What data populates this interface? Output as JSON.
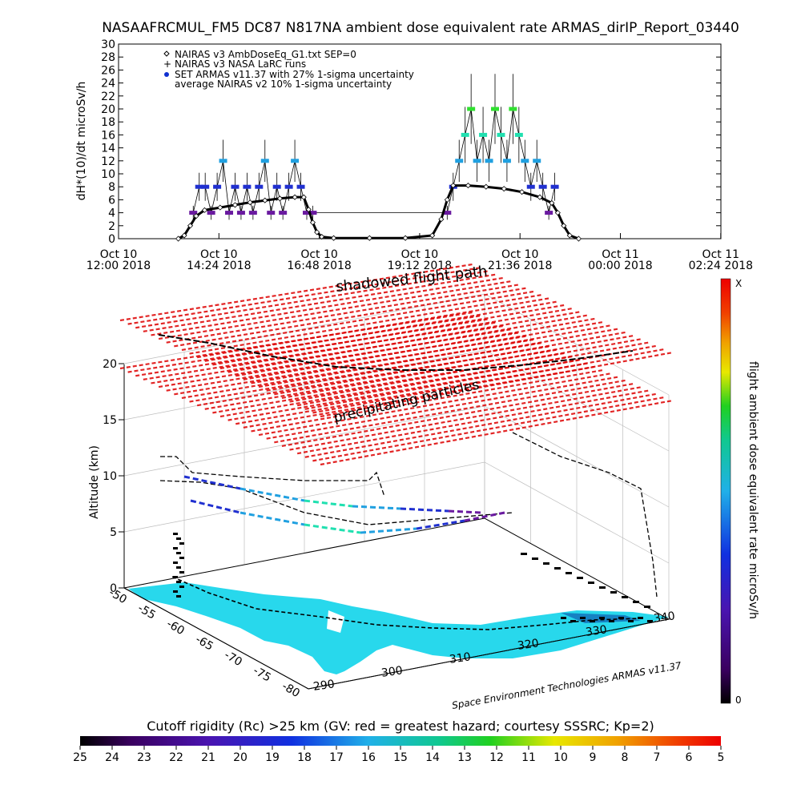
{
  "top_panel": {
    "title": "NASAAFRCMUL_FM5 DC87 N817NA ambient dose equivalent rate ARMAS_dirIP_Report_03440",
    "ylabel": "dH*(10)/dt microSv/h",
    "legend": [
      "NAIRAS v3 AmbDoseEq_G1.txt SEP=0",
      "NAIRAS v3 NASA LaRC runs",
      "SET ARMAS v11.37 with 27% 1-sigma uncertainty",
      "average NAIRAS v2 10% 1-sigma uncertainty"
    ],
    "x_tick_labels": [
      {
        "l1": "Oct 10",
        "l2": "12:00 2018"
      },
      {
        "l1": "Oct 10",
        "l2": "14:24 2018"
      },
      {
        "l1": "Oct 10",
        "l2": "16:48 2018"
      },
      {
        "l1": "Oct 10",
        "l2": "19:12 2018"
      },
      {
        "l1": "Oct 10",
        "l2": "21:36 2018"
      },
      {
        "l1": "Oct 11",
        "l2": "00:00 2018"
      },
      {
        "l1": "Oct 11",
        "l2": "02:24 2018"
      }
    ]
  },
  "bottom_panel": {
    "zlabel": "Altitude (km)",
    "z_ticks": [
      "0",
      "5",
      "10",
      "15",
      "20"
    ],
    "lat_ticks": [
      "-50",
      "-55",
      "-60",
      "-65",
      "-70",
      "-75",
      "-80"
    ],
    "lon_ticks": [
      "290",
      "300",
      "310",
      "320",
      "330",
      "340"
    ],
    "labels": {
      "shadowed": "shadowed flight path",
      "precipitating": "precipitating particles"
    },
    "credit": "Space Environment Technologies ARMAS v11.37",
    "colorbar_label": "flight ambient dose equivalent rate microSv/h",
    "colorbar_top": "X",
    "colorbar_bottom": "0"
  },
  "cutoff_bar": {
    "title": "Cutoff rigidity (Rc) >25 km (GV: red = greatest hazard; courtesy SSSRC; Kp=2)",
    "ticks": [
      "25",
      "24",
      "23",
      "22",
      "21",
      "20",
      "19",
      "18",
      "17",
      "16",
      "15",
      "14",
      "13",
      "12",
      "11",
      "10",
      "9",
      "8",
      "7",
      "6",
      "5"
    ]
  },
  "colors": {
    "armas_palette": [
      "#3a0060",
      "#6a1aa0",
      "#2030d0",
      "#20a0e0",
      "#20e0b0",
      "#30e030"
    ],
    "sheet_red": "#dd0000",
    "land_cyan": "#28d8ec"
  },
  "chart_data": [
    {
      "type": "scatter",
      "title": "NASAAFRCMUL_FM5 DC87 N817NA ambient dose equivalent rate ARMAS_dirIP_Report_03440",
      "xlabel": "",
      "ylabel": "dH*(10)/dt microSv/h",
      "x_unit": "time UTC",
      "xlim": [
        "2018-10-10 12:00",
        "2018-10-11 04:48"
      ],
      "ylim": [
        0,
        30
      ],
      "grid": false,
      "legend_position": "top-left",
      "series": [
        {
          "name": "NAIRAS v3 AmbDoseEq_G1.txt SEP=0",
          "marker": "diamond",
          "points": [
            [
              "2018-10-10 13:40",
              0.0
            ],
            [
              "2018-10-10 13:50",
              0.5
            ],
            [
              "2018-10-10 14:00",
              2.0
            ],
            [
              "2018-10-10 14:10",
              3.5
            ],
            [
              "2018-10-10 14:24",
              4.4
            ],
            [
              "2018-10-10 14:50",
              4.8
            ],
            [
              "2018-10-10 15:15",
              5.2
            ],
            [
              "2018-10-10 15:40",
              5.6
            ],
            [
              "2018-10-10 16:05",
              5.9
            ],
            [
              "2018-10-10 16:30",
              6.2
            ],
            [
              "2018-10-10 16:55",
              6.4
            ],
            [
              "2018-10-10 17:10",
              6.4
            ],
            [
              "2018-10-10 17:18",
              4.5
            ],
            [
              "2018-10-10 17:25",
              2.5
            ],
            [
              "2018-10-10 17:32",
              1.0
            ],
            [
              "2018-10-10 17:40",
              0.3
            ],
            [
              "2018-10-10 18:00",
              0.1
            ],
            [
              "2018-10-10 19:00",
              0.1
            ],
            [
              "2018-10-10 20:00",
              0.1
            ],
            [
              "2018-10-10 20:45",
              0.5
            ],
            [
              "2018-10-10 21:00",
              3.0
            ],
            [
              "2018-10-10 21:10",
              6.0
            ],
            [
              "2018-10-10 21:20",
              8.2
            ],
            [
              "2018-10-10 21:45",
              8.2
            ],
            [
              "2018-10-10 22:15",
              8.0
            ],
            [
              "2018-10-10 22:45",
              7.7
            ],
            [
              "2018-10-10 23:15",
              7.2
            ],
            [
              "2018-10-10 23:45",
              6.4
            ],
            [
              "2018-10-11 00:05",
              5.5
            ],
            [
              "2018-10-11 00:15",
              4.0
            ],
            [
              "2018-10-11 00:25",
              2.0
            ],
            [
              "2018-10-11 00:35",
              0.5
            ],
            [
              "2018-10-11 00:50",
              0.0
            ]
          ]
        },
        {
          "name": "SET ARMAS v11.37 with 27% 1-sigma uncertainty",
          "marker": "dot",
          "points": [
            [
              "2018-10-10 14:05",
              4
            ],
            [
              "2018-10-10 14:15",
              8
            ],
            [
              "2018-10-10 14:25",
              8
            ],
            [
              "2018-10-10 14:35",
              4
            ],
            [
              "2018-10-10 14:45",
              8
            ],
            [
              "2018-10-10 14:55",
              12
            ],
            [
              "2018-10-10 15:05",
              4
            ],
            [
              "2018-10-10 15:15",
              8
            ],
            [
              "2018-10-10 15:25",
              4
            ],
            [
              "2018-10-10 15:35",
              8
            ],
            [
              "2018-10-10 15:45",
              4
            ],
            [
              "2018-10-10 15:55",
              8
            ],
            [
              "2018-10-10 16:05",
              12
            ],
            [
              "2018-10-10 16:15",
              4
            ],
            [
              "2018-10-10 16:25",
              8
            ],
            [
              "2018-10-10 16:35",
              4
            ],
            [
              "2018-10-10 16:45",
              8
            ],
            [
              "2018-10-10 16:55",
              12
            ],
            [
              "2018-10-10 17:05",
              8
            ],
            [
              "2018-10-10 17:15",
              4
            ],
            [
              "2018-10-10 17:25",
              4
            ],
            [
              "2018-10-10 21:10",
              4
            ],
            [
              "2018-10-10 21:20",
              8
            ],
            [
              "2018-10-10 21:30",
              12
            ],
            [
              "2018-10-10 21:40",
              16
            ],
            [
              "2018-10-10 21:50",
              20
            ],
            [
              "2018-10-10 22:00",
              12
            ],
            [
              "2018-10-10 22:10",
              16
            ],
            [
              "2018-10-10 22:20",
              12
            ],
            [
              "2018-10-10 22:30",
              20
            ],
            [
              "2018-10-10 22:40",
              16
            ],
            [
              "2018-10-10 22:50",
              12
            ],
            [
              "2018-10-10 23:00",
              20
            ],
            [
              "2018-10-10 23:10",
              16
            ],
            [
              "2018-10-10 23:20",
              12
            ],
            [
              "2018-10-10 23:30",
              8
            ],
            [
              "2018-10-10 23:40",
              12
            ],
            [
              "2018-10-10 23:50",
              8
            ],
            [
              "2018-10-11 00:00",
              4
            ],
            [
              "2018-10-11 00:10",
              8
            ]
          ]
        }
      ]
    },
    {
      "type": "scatter",
      "title": "",
      "xlabel": "",
      "ylabel": "",
      "zlabel": "Altitude (km)",
      "lon_range": [
        290,
        340
      ],
      "lat_range": [
        -80,
        -50
      ],
      "z_range": [
        0,
        20
      ],
      "series": [
        {
          "name": "",
          "points_lon_lat_alt": [
            [
              291,
              -57,
              11.5
            ],
            [
              293,
              -59,
              11.0
            ],
            [
              296,
              -61,
              10.5
            ],
            [
              300,
              -63,
              9.8
            ],
            [
              305,
              -65,
              9.0
            ],
            [
              310,
              -67,
              8.5
            ],
            [
              315,
              -68,
              8.3
            ],
            [
              320,
              -69,
              8.0
            ],
            [
              325,
              -70,
              7.5
            ],
            [
              330,
              -71,
              6.5
            ],
            [
              335,
              -72,
              5.0
            ],
            [
              338,
              -73,
              2.0
            ]
          ]
        }
      ]
    },
    {
      "type": "heatmap",
      "title": "Cutoff rigidity (Rc) >25 km (GV: red = greatest hazard; courtesy SSSRC; Kp=2)",
      "categories": [
        "25",
        "24",
        "23",
        "22",
        "21",
        "20",
        "19",
        "18",
        "17",
        "16",
        "15",
        "14",
        "13",
        "12",
        "11",
        "10",
        "9",
        "8",
        "7",
        "6",
        "5"
      ],
      "scale": [
        25,
        5
      ],
      "unit": "GV"
    }
  ]
}
